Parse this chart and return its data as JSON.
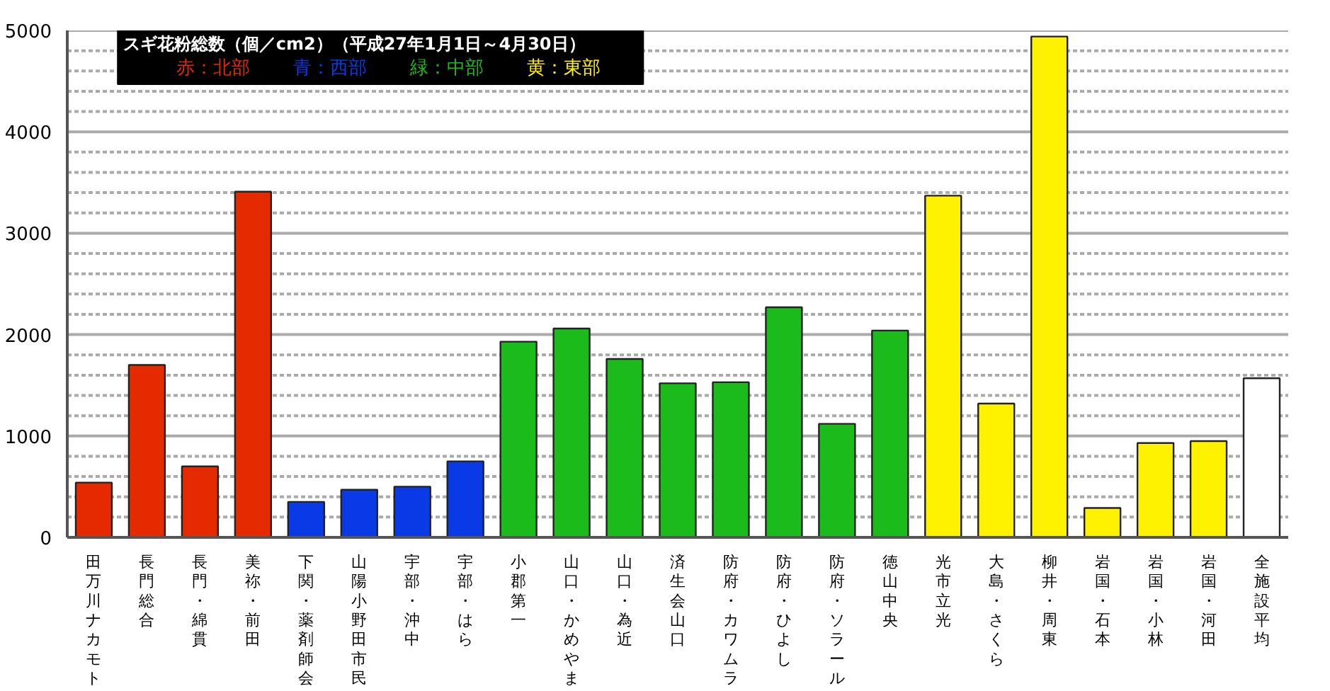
{
  "chart_data": {
    "type": "bar",
    "title": "スギ花粉総数（個／cm2）（平成27年1月1日～4月30日）",
    "categories": [
      "田万川ナカモト",
      "長門総合",
      "長門・綿貫",
      "美祢・前田",
      "下関・薬剤師会",
      "山陽小野田市民",
      "宇部・沖中",
      "宇部・はら",
      "小郡第一",
      "山口・かめやま",
      "山口・為近",
      "済生会山口",
      "防府・カワムラ",
      "防府・ひよし",
      "防府・ソラール",
      "徳山中央",
      "光市立光",
      "大島・さくら",
      "柳井・周東",
      "岩国・石本",
      "岩国・小林",
      "岩国・河田",
      "全施設平均"
    ],
    "series": [
      {
        "name": "赤：北部",
        "color": "#e52a00",
        "values": [
          540,
          1700,
          700,
          3410,
          null,
          null,
          null,
          null,
          null,
          null,
          null,
          null,
          null,
          null,
          null,
          null,
          null,
          null,
          null,
          null,
          null,
          null,
          null
        ]
      },
      {
        "name": "青：西部",
        "color": "#0a3ae6",
        "values": [
          null,
          null,
          null,
          null,
          350,
          470,
          500,
          750,
          null,
          null,
          null,
          null,
          null,
          null,
          null,
          null,
          null,
          null,
          null,
          null,
          null,
          null,
          null
        ]
      },
      {
        "name": "緑：中部",
        "color": "#1cbb1c",
        "values": [
          null,
          null,
          null,
          null,
          null,
          null,
          null,
          null,
          1930,
          2060,
          1760,
          1520,
          1530,
          2270,
          1120,
          2040,
          null,
          null,
          null,
          null,
          null,
          null,
          null
        ]
      },
      {
        "name": "黄：東部",
        "color": "#fff200",
        "values": [
          null,
          null,
          null,
          null,
          null,
          null,
          null,
          null,
          null,
          null,
          null,
          null,
          null,
          null,
          null,
          null,
          3370,
          1320,
          4940,
          290,
          930,
          950,
          null
        ]
      },
      {
        "color": "#ffffff",
        "values": [
          null,
          null,
          null,
          null,
          null,
          null,
          null,
          null,
          null,
          null,
          null,
          null,
          null,
          null,
          null,
          null,
          null,
          null,
          null,
          null,
          null,
          null,
          1570
        ]
      }
    ],
    "ylim": [
      0,
      5000
    ],
    "yticks": [
      0,
      {
        "value": 200,
        "label": null
      },
      {
        "value": 400,
        "label": null
      },
      {
        "value": 600,
        "label": null
      },
      {
        "value": 800,
        "label": null
      },
      1000,
      {
        "value": 1200,
        "label": null
      },
      {
        "value": 1400,
        "label": null
      },
      {
        "value": 1600,
        "label": null
      },
      {
        "value": 1800,
        "label": null
      },
      2000,
      {
        "value": 2200,
        "label": null
      },
      {
        "value": 2400,
        "label": null
      },
      {
        "value": 2600,
        "label": null
      },
      {
        "value": 2800,
        "label": null
      },
      3000,
      {
        "value": 3200,
        "label": null
      },
      {
        "value": 3400,
        "label": null
      },
      {
        "value": 3600,
        "label": null
      },
      {
        "value": 3800,
        "label": null
      },
      4000,
      {
        "value": 4200,
        "label": null
      },
      {
        "value": 4400,
        "label": null
      },
      {
        "value": 4600,
        "label": null
      },
      {
        "value": 4800,
        "label": null
      },
      5000
    ],
    "grid": "y",
    "legend": "top left"
  }
}
